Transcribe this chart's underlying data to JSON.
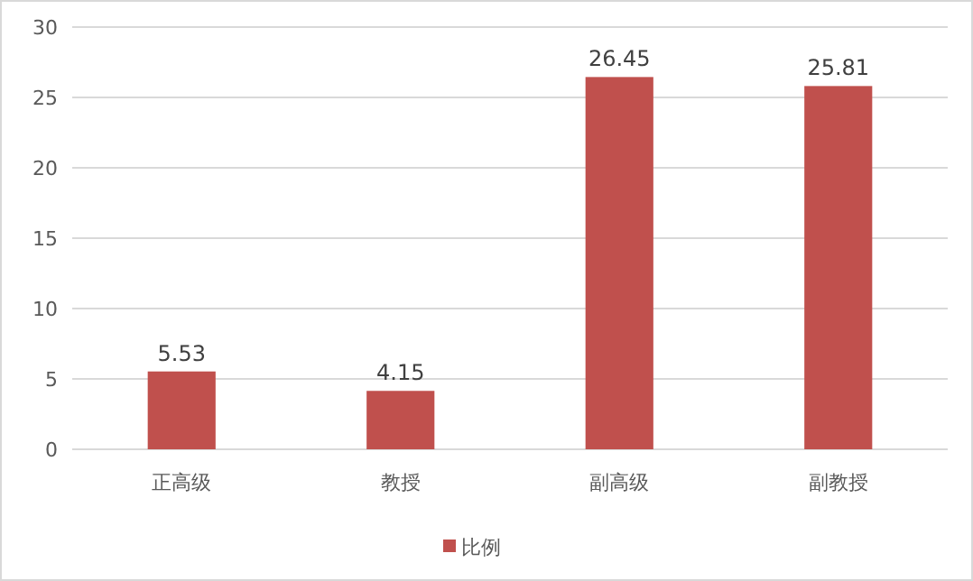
{
  "chart_data": {
    "type": "bar",
    "categories": [
      "正高级",
      "教授",
      "副高级",
      "副教授"
    ],
    "series": [
      {
        "name": "比例",
        "color": "#c0504d",
        "values": [
          5.53,
          4.15,
          26.45,
          25.81
        ]
      }
    ],
    "ylim": [
      0,
      30
    ],
    "yticks": [
      0,
      5,
      10,
      15,
      20,
      25,
      30
    ],
    "grid": "y",
    "legend": "bottom",
    "data_labels": true
  }
}
